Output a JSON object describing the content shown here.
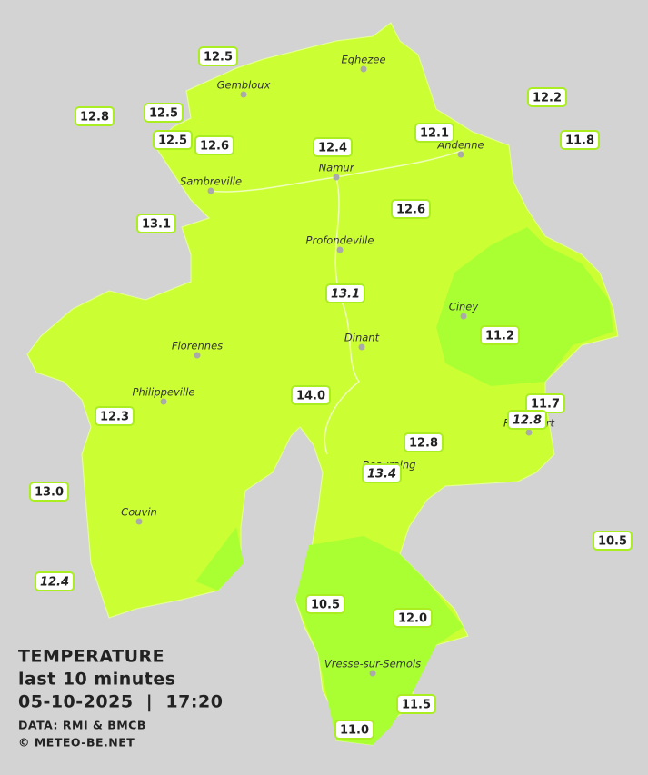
{
  "legend": {
    "title": "TEMPERATURE",
    "subtitle": "last 10 minutes",
    "datetime": "05-10-2025  |  17:20",
    "source": "DATA: RMI & BMCB",
    "copyright": "© METEO-BE.NET"
  },
  "cities": [
    "Eghezee",
    "Gembloux",
    "Andenne",
    "Namur",
    "Sambreville",
    "Profondeville",
    "Ciney",
    "Dinant",
    "Florennes",
    "Philippeville",
    "Rochefort",
    "Beauraing",
    "Couvin",
    "Vresse-sur-Semois"
  ],
  "stations": [
    {
      "value": "12.5",
      "italic": false
    },
    {
      "value": "12.8",
      "italic": false
    },
    {
      "value": "12.5",
      "italic": false
    },
    {
      "value": "12.5",
      "italic": false
    },
    {
      "value": "12.6",
      "italic": false
    },
    {
      "value": "12.4",
      "italic": false
    },
    {
      "value": "12.1",
      "italic": false
    },
    {
      "value": "12.2",
      "italic": false
    },
    {
      "value": "11.8",
      "italic": false
    },
    {
      "value": "13.1",
      "italic": false
    },
    {
      "value": "12.6",
      "italic": false
    },
    {
      "value": "13.1",
      "italic": true
    },
    {
      "value": "11.2",
      "italic": false
    },
    {
      "value": "14.0",
      "italic": false
    },
    {
      "value": "11.7",
      "italic": false
    },
    {
      "value": "12.8",
      "italic": true
    },
    {
      "value": "12.3",
      "italic": false
    },
    {
      "value": "12.8",
      "italic": false
    },
    {
      "value": "13.4",
      "italic": true
    },
    {
      "value": "13.0",
      "italic": false
    },
    {
      "value": "10.5",
      "italic": false
    },
    {
      "value": "12.4",
      "italic": true
    },
    {
      "value": "10.5",
      "italic": false
    },
    {
      "value": "12.0",
      "italic": false
    },
    {
      "value": "11.5",
      "italic": false
    },
    {
      "value": "11.0",
      "italic": false
    }
  ]
}
